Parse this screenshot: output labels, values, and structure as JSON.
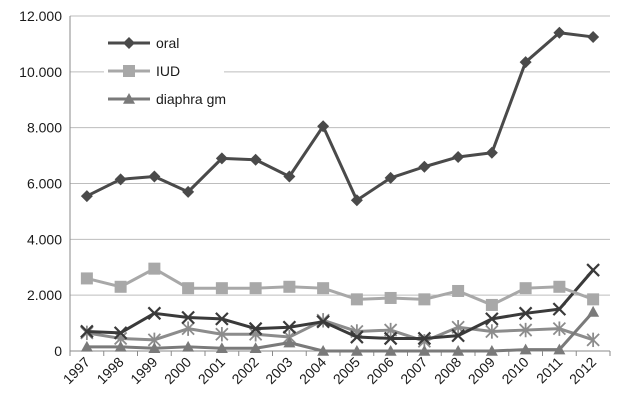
{
  "chart_data": {
    "type": "line",
    "categories": [
      "1997",
      "1998",
      "1999",
      "2000",
      "2001",
      "2002",
      "2003",
      "2004",
      "2005",
      "2006",
      "2007",
      "2008",
      "2009",
      "2010",
      "2011",
      "2012"
    ],
    "y_ticks": [
      "0",
      "2.000",
      "4.000",
      "6.000",
      "8.000",
      "10.000",
      "12.000"
    ],
    "ylim": [
      0,
      12000
    ],
    "grid": "horizontal",
    "legend_position": "top-left",
    "series": [
      {
        "name": "oral",
        "marker": "diamond",
        "color": "#4a4a4a",
        "values": [
          5550,
          6150,
          6250,
          5700,
          6900,
          6850,
          6250,
          8050,
          5400,
          6200,
          6600,
          6950,
          7100,
          10350,
          11400,
          11250
        ]
      },
      {
        "name": "IUD",
        "marker": "square",
        "color": "#a8a8a8",
        "values": [
          2600,
          2300,
          2950,
          2250,
          2250,
          2250,
          2300,
          2250,
          1850,
          1900,
          1850,
          2150,
          1650,
          2250,
          2300,
          1850
        ]
      },
      {
        "name": "diaphra gm",
        "marker": "triangle",
        "color": "#7a7a7a",
        "values": [
          150,
          150,
          100,
          150,
          100,
          100,
          300,
          0,
          0,
          0,
          0,
          0,
          0,
          50,
          50,
          1400
        ]
      },
      {
        "name": "",
        "marker": "x",
        "color": "#3a3a3a",
        "values": [
          700,
          650,
          1350,
          1200,
          1150,
          800,
          850,
          1050,
          500,
          450,
          450,
          550,
          1150,
          1350,
          1500,
          2900
        ]
      },
      {
        "name": "",
        "marker": "star",
        "color": "#8c8c8c",
        "values": [
          650,
          450,
          400,
          800,
          600,
          600,
          500,
          1100,
          700,
          750,
          350,
          850,
          700,
          750,
          800,
          400
        ]
      }
    ]
  }
}
